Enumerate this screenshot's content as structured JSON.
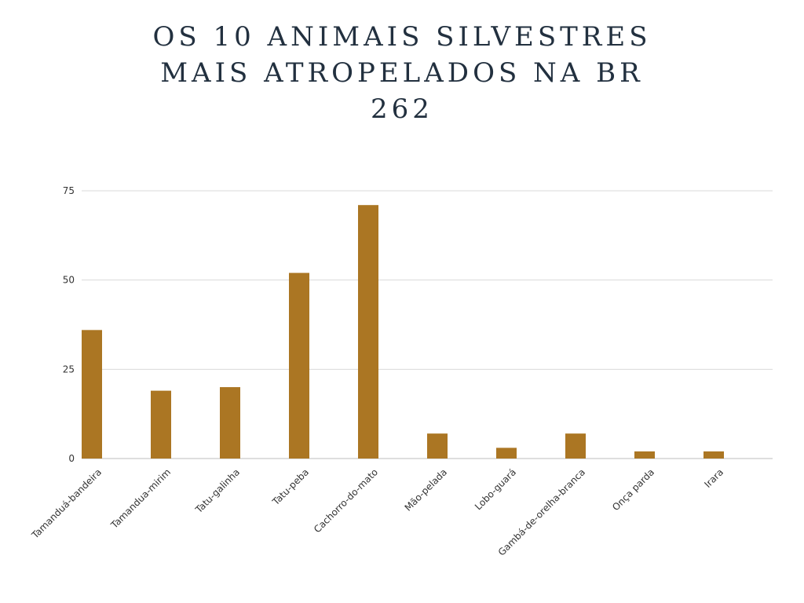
{
  "chart_data": {
    "type": "bar",
    "title": "OS 10 ANIMAIS SILVESTRES MAIS ATROPELADOS NA BR 262",
    "xlabel": "",
    "ylabel": "",
    "categories": [
      "Tamanduá-bandeira",
      "Tamandua-mirim",
      "Tatu-galinha",
      "Tatu-peba",
      "Cachorro-do-mato",
      "Mão-pelada",
      "Lobo-guará",
      "Gambá-de-orelha-branca",
      "Onça parda",
      "Irara"
    ],
    "values": [
      36,
      19,
      20,
      52,
      71,
      7,
      3,
      7,
      2,
      2
    ],
    "ylim": [
      0,
      75
    ],
    "yticks": [
      0,
      25,
      50,
      75
    ],
    "grid": true,
    "colors": {
      "bar": "#ab7623",
      "grid": "#d9d9d9",
      "axis": "#bdbdbd",
      "title": "#22303f"
    }
  }
}
